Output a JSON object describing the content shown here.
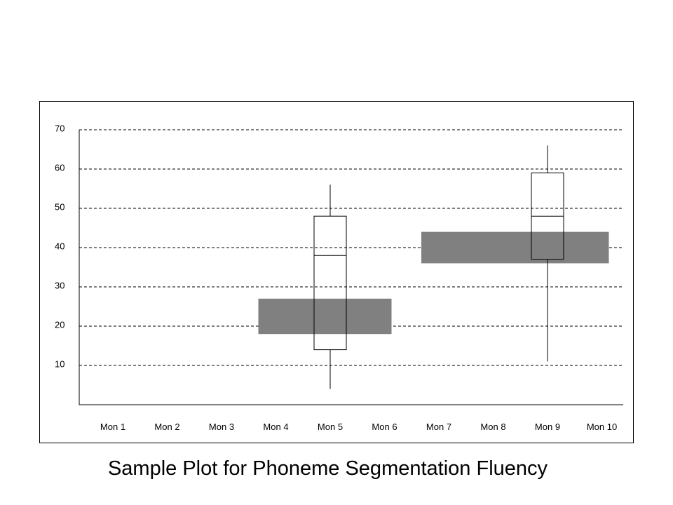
{
  "caption": "Sample Plot for Phoneme Segmentation Fluency",
  "chart_data": {
    "type": "box",
    "title": "Sample Plot for Phoneme Segmentation Fluency",
    "xlabel": "",
    "ylabel": "",
    "categories": [
      "Mon 1",
      "Mon 2",
      "Mon 3",
      "Mon 4",
      "Mon 5",
      "Mon 6",
      "Mon 7",
      "Mon 8",
      "Mon 9",
      "Mon 10"
    ],
    "yticks": [
      10,
      20,
      30,
      40,
      50,
      60,
      70
    ],
    "ylim": [
      0,
      70
    ],
    "grid": "dashed horizontal",
    "legend": "none",
    "boxes": [
      {
        "category": "Mon 5",
        "whisker_low": 4,
        "q1": 14,
        "median": 38,
        "q3": 48,
        "whisker_high": 56
      },
      {
        "category": "Mon 9",
        "whisker_low": 11,
        "q1": 37,
        "median": 48,
        "q3": 59,
        "whisker_high": 66
      }
    ],
    "bands": [
      {
        "from_category": "Mon 4",
        "to_category": "Mon 6",
        "y_low": 18,
        "y_high": 27
      },
      {
        "from_category": "Mon 7",
        "to_category": "Mon 10",
        "y_low": 36,
        "y_high": 44
      }
    ],
    "colors": {
      "band": "#808080",
      "axis": "#000000",
      "grid": "#000000"
    }
  }
}
